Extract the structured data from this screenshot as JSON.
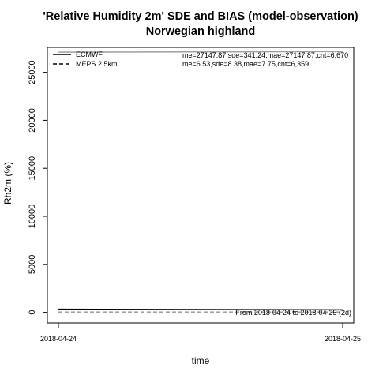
{
  "chart_data": {
    "type": "line",
    "title": "'Relative Humidity 2m' SDE and BIAS (model-observation)",
    "subtitle": "Norwegian highland",
    "xlabel": "time",
    "ylabel": "Rh2m (%)",
    "x": [
      "2018-04-24",
      "2018-04-25"
    ],
    "ylim": [
      -1100,
      27600
    ],
    "y_ticks": [
      0,
      5000,
      10000,
      15000,
      20000,
      25000
    ],
    "x_tick_labels": [
      "2018-04-24",
      "2018-04-25"
    ],
    "grid": false,
    "legend_position": "top-left",
    "series": [
      {
        "name": "ECMWF",
        "metric": "SDE",
        "style": "solid",
        "color": "#000000",
        "values": [
          330,
          270
        ]
      },
      {
        "name": "ECMWF",
        "metric": "BIAS",
        "style": "solid",
        "color": "#a0a0a0",
        "values": [
          27100,
          27160
        ]
      },
      {
        "name": "MEPS 2.5km",
        "metric": "SDE",
        "style": "dashed",
        "color": "#000000",
        "values": [
          8,
          9
        ]
      },
      {
        "name": "MEPS 2.5km",
        "metric": "BIAS",
        "style": "dashed",
        "color": "#a0a0a0",
        "values": [
          6,
          7
        ]
      }
    ],
    "legend": [
      {
        "label": "ECMWF",
        "style": "solid",
        "stats": "me=27147.87,sde=341.24,mae=27147.87,cnt=6,670"
      },
      {
        "label": "MEPS 2.5km",
        "style": "dashed",
        "stats": "me=6.53,sde=8.38,mae=7.75,cnt=6,359"
      }
    ],
    "annotation": "From 2018-04-24 to 2018-04-25 (2d)"
  }
}
